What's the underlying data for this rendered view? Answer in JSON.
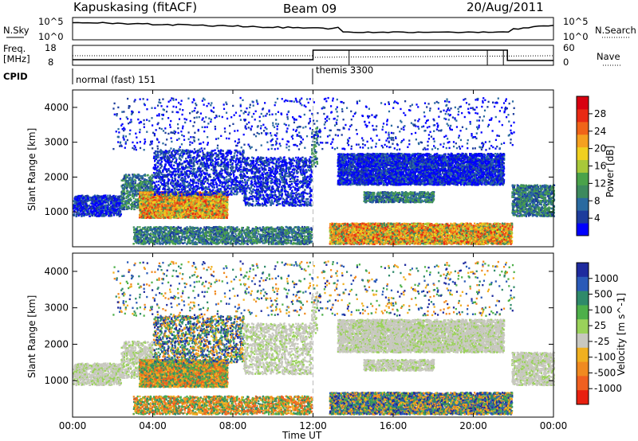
{
  "header": {
    "station": "Kapuskasing (fitACF)",
    "beam": "Beam 09",
    "date": "20/Aug/2011"
  },
  "top_strip": {
    "left_label": "N.Sky",
    "right_label": "N.Search",
    "left_ticks": [
      "10^5",
      "10^0"
    ],
    "right_ticks": [
      "10^5",
      "10^0"
    ]
  },
  "freq_strip": {
    "left_label_1": "Freq.",
    "left_label_2": "[MHz]",
    "right_label": "Nave",
    "left_ticks": [
      "18",
      "8"
    ],
    "right_ticks": [
      "60",
      "0"
    ]
  },
  "cpid": {
    "label": "CPID",
    "segments": [
      {
        "name": "normal (fast) 151",
        "start_hour": 0,
        "end_hour": 12
      },
      {
        "name": "themis 3300",
        "start_hour": 12,
        "end_hour": 24
      }
    ]
  },
  "colors": {
    "power": [
      "#0000ff",
      "#1d3c9c",
      "#2a6aa0",
      "#3d8a5e",
      "#4aa24a",
      "#a8c83a",
      "#f0d020",
      "#f5a020",
      "#f06418",
      "#e82a14",
      "#d80010"
    ],
    "velocity": [
      "#1e2a9e",
      "#2a5ab8",
      "#2f8a6a",
      "#4eb04a",
      "#9ad25a",
      "#c8c8c0",
      "#f0b020",
      "#f08a20",
      "#f06020",
      "#e82010"
    ]
  },
  "chart_data": [
    {
      "type": "heatmap",
      "title": "",
      "ylabel": "Slant Range [km]",
      "xlabel": "Time UT",
      "x_ticks": [
        "00:00",
        "04:00",
        "08:00",
        "12:00",
        "16:00",
        "20:00",
        "00:00"
      ],
      "y_ticks": [
        "1000",
        "2000",
        "3000",
        "4000"
      ],
      "ylim": [
        0,
        4500
      ],
      "xlim_hours": [
        0,
        24
      ],
      "colorbar": {
        "label": "Power [dB]",
        "ticks": [
          "4",
          "8",
          "12",
          "16",
          "20",
          "24",
          "28"
        ],
        "range": [
          0,
          30
        ]
      }
    },
    {
      "type": "heatmap",
      "title": "",
      "ylabel": "Slant Range [km]",
      "xlabel": "Time UT",
      "x_ticks": [
        "00:00",
        "04:00",
        "08:00",
        "12:00",
        "16:00",
        "20:00",
        "00:00"
      ],
      "y_ticks": [
        "1000",
        "2000",
        "3000",
        "4000"
      ],
      "ylim": [
        0,
        4500
      ],
      "xlim_hours": [
        0,
        24
      ],
      "colorbar": {
        "label": "Velocity [m s^-1]",
        "ticks": [
          "1000",
          "500",
          "100",
          "25",
          "-25",
          "-100",
          "-500",
          "-1000"
        ]
      }
    }
  ]
}
